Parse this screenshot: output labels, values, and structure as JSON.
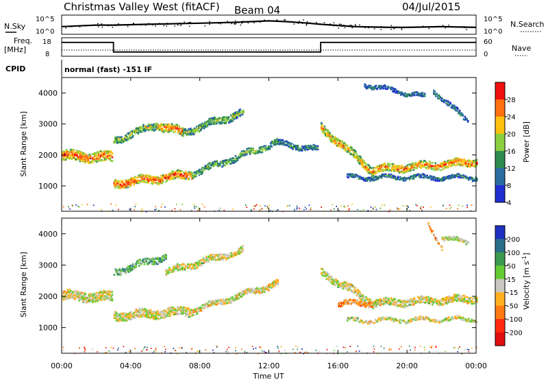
{
  "header": {
    "station": "Christmas Valley West (fitACF)",
    "beam": "Beam 04",
    "date": "04/Jul/2015"
  },
  "top_panels": {
    "nsky_label": "N.Sky",
    "nsky_ticks": [
      "10^5",
      "10^0"
    ],
    "nsearch_ticks": [
      "10^5",
      "10^0"
    ],
    "nsearch_label": "N.Search",
    "freq_label_1": "Freq.",
    "freq_label_2": "[MHz]",
    "freq_ticks": [
      "18",
      "8"
    ],
    "nave_ticks": [
      "60",
      "0"
    ],
    "nave_label": "Nave",
    "cpid_label": "CPID",
    "cpid_text": "normal (fast) -151 IF"
  },
  "chart_data": [
    {
      "type": "line",
      "name": "n-sky-search",
      "x": [
        "00:00",
        "01:00",
        "02:00",
        "03:00",
        "04:00",
        "05:00",
        "06:00",
        "07:00",
        "08:00",
        "09:00",
        "10:00",
        "11:00",
        "12:00",
        "13:00",
        "14:00",
        "15:00",
        "16:00",
        "17:00",
        "18:00",
        "19:00",
        "20:00",
        "21:00",
        "22:00",
        "23:00",
        "24:00"
      ],
      "values": [
        2.0,
        2.2,
        2.4,
        2.4,
        2.5,
        2.6,
        2.7,
        2.8,
        2.9,
        3.0,
        3.1,
        3.3,
        3.5,
        3.3,
        3.0,
        2.6,
        2.3,
        2.0,
        1.9,
        1.8,
        1.8,
        1.9,
        2.0,
        1.9,
        1.8
      ]
    },
    {
      "type": "line",
      "name": "frequency-nave",
      "steps": [
        {
          "start": "00:00",
          "end": "03:00",
          "freq": 15.5
        },
        {
          "start": "03:00",
          "end": "15:00",
          "freq": 10.3
        },
        {
          "start": "15:00",
          "end": "24:00",
          "freq": 15.5
        }
      ],
      "nave": 20,
      "freq_range": [
        8,
        18
      ],
      "nave_range": [
        0,
        60
      ]
    },
    {
      "type": "heatmap",
      "name": "power",
      "xlabel": "",
      "ylabel": "Slant Range [km]",
      "xlim": [
        "00:00",
        "24:00"
      ],
      "ylim": [
        180,
        4500
      ],
      "yticks": [
        "4000",
        "3000",
        "2000",
        "1000"
      ],
      "colorbar": {
        "label": "Power [dB]",
        "ticks": [
          "28",
          "24",
          "20",
          "16",
          "12",
          "8",
          "4"
        ],
        "colors": [
          "#f01010",
          "#ff7010",
          "#ffc010",
          "#8cd040",
          "#2e8a4e",
          "#2a6ea0",
          "#2030d0"
        ]
      },
      "features": [
        {
          "t0": 0.0,
          "t1": 2.9,
          "r0": 2000,
          "r1": 1950,
          "w": 320,
          "level": 0.85
        },
        {
          "t0": 3.0,
          "t1": 7.5,
          "r0": 1100,
          "r1": 1400,
          "w": 260,
          "level": 0.9
        },
        {
          "t0": 7.5,
          "t1": 12.5,
          "r0": 1400,
          "r1": 2450,
          "w": 200,
          "level": 0.45
        },
        {
          "t0": 12.5,
          "t1": 14.8,
          "r0": 2400,
          "r1": 2200,
          "w": 160,
          "level": 0.3
        },
        {
          "t0": 3.0,
          "t1": 5.5,
          "r0": 2500,
          "r1": 3000,
          "w": 220,
          "level": 0.55
        },
        {
          "t0": 5.5,
          "t1": 7.0,
          "r0": 3000,
          "r1": 2750,
          "w": 280,
          "level": 0.8
        },
        {
          "t0": 7.0,
          "t1": 10.5,
          "r0": 2750,
          "r1": 3400,
          "w": 220,
          "level": 0.5
        },
        {
          "t0": 15.0,
          "t1": 18.0,
          "r0": 2900,
          "r1": 1500,
          "w": 260,
          "level": 0.75
        },
        {
          "t0": 18.0,
          "t1": 24.0,
          "r0": 1550,
          "r1": 1800,
          "w": 240,
          "level": 0.8
        },
        {
          "t0": 16.5,
          "t1": 24.0,
          "r0": 1300,
          "r1": 1300,
          "w": 120,
          "level": 0.3
        },
        {
          "t0": 21.5,
          "t1": 23.5,
          "r0": 4100,
          "r1": 3100,
          "w": 140,
          "level": 0.3
        },
        {
          "t0": 17.5,
          "t1": 21.0,
          "r0": 4300,
          "r1": 3900,
          "w": 120,
          "level": 0.25
        }
      ]
    },
    {
      "type": "heatmap",
      "name": "velocity",
      "xlabel": "Time UT",
      "ylabel": "Slant Range [km]",
      "xlim": [
        "00:00",
        "24:00"
      ],
      "ylim": [
        180,
        4500
      ],
      "xticks": [
        "00:00",
        "04:00",
        "08:00",
        "12:00",
        "16:00",
        "20:00",
        "00:00"
      ],
      "yticks": [
        "4000",
        "3000",
        "2000",
        "1000"
      ],
      "colorbar": {
        "label": "Velocity [m s^-1]",
        "ticks": [
          "200",
          "100",
          "50",
          "15",
          "-15",
          "-50",
          "-100",
          "-200"
        ],
        "colors": [
          "#2030c0",
          "#2a6e8a",
          "#3c9a50",
          "#66cc33",
          "#c8c8c0",
          "#ffb020",
          "#ff7a10",
          "#ff2a10",
          "#e01010"
        ]
      },
      "features": [
        {
          "t0": 0.0,
          "t1": 2.9,
          "r0": 2050,
          "r1": 2000,
          "w": 300,
          "level": 0.5
        },
        {
          "t0": 3.0,
          "t1": 7.5,
          "r0": 1400,
          "r1": 1550,
          "w": 280,
          "level": 0.5
        },
        {
          "t0": 7.5,
          "t1": 12.5,
          "r0": 1550,
          "r1": 2450,
          "w": 180,
          "level": 0.48
        },
        {
          "t0": 3.0,
          "t1": 6.0,
          "r0": 2800,
          "r1": 3300,
          "w": 200,
          "level": 0.68
        },
        {
          "t0": 6.0,
          "t1": 10.5,
          "r0": 2800,
          "r1": 3500,
          "w": 200,
          "level": 0.5
        },
        {
          "t0": 15.0,
          "t1": 18.0,
          "r0": 2800,
          "r1": 1800,
          "w": 240,
          "level": 0.5
        },
        {
          "t0": 16.0,
          "t1": 18.5,
          "r0": 1800,
          "r1": 1800,
          "w": 160,
          "level": 0.35
        },
        {
          "t0": 18.0,
          "t1": 24.0,
          "r0": 1800,
          "r1": 1950,
          "w": 220,
          "level": 0.5
        },
        {
          "t0": 16.5,
          "t1": 24.0,
          "r0": 1250,
          "r1": 1300,
          "w": 110,
          "level": 0.5
        },
        {
          "t0": 21.2,
          "t1": 22.0,
          "r0": 4300,
          "r1": 3600,
          "w": 120,
          "level": 0.35
        },
        {
          "t0": 22.0,
          "t1": 23.5,
          "r0": 3900,
          "r1": 3750,
          "w": 120,
          "level": 0.5
        }
      ]
    }
  ]
}
